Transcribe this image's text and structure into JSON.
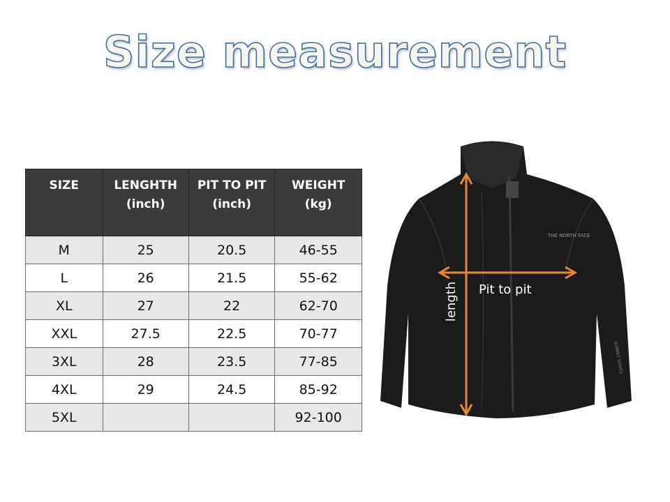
{
  "title": "Size measurement",
  "table": {
    "headers": [
      [
        "SIZE",
        ""
      ],
      [
        "LENGHTH",
        "(inch)"
      ],
      [
        "PIT TO PIT",
        "(inch)"
      ],
      [
        "WEIGHT",
        "(kg)"
      ]
    ],
    "rows": [
      [
        "M",
        "25",
        "20.5",
        "46-55"
      ],
      [
        "L",
        "26",
        "21.5",
        "55-62"
      ],
      [
        "XL",
        "27",
        "22",
        "62-70"
      ],
      [
        "XXL",
        "27.5",
        "22.5",
        "70-77"
      ],
      [
        "3XL",
        "28",
        "23.5",
        "77-85"
      ],
      [
        "4XL",
        "29",
        "24.5",
        "85-92"
      ],
      [
        "5XL",
        "",
        "",
        "92-100"
      ]
    ]
  },
  "diagram": {
    "pit_label": "Pit to pit",
    "length_label": "length",
    "arrow_color": "#e8892f",
    "logo_text": "THE NORTH FACE",
    "sleeve_text": "SUMMIT SERIES"
  }
}
